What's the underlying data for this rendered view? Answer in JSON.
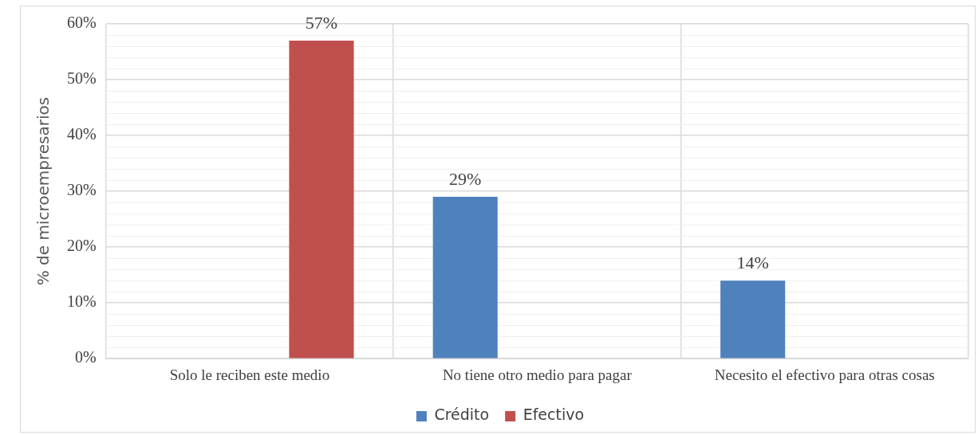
{
  "chart_data": {
    "type": "bar",
    "ylabel": "% de microempresarios",
    "categories": [
      "Solo le reciben este medio",
      "No tiene otro medio para pagar",
      "Necesito el efectivo para otras cosas"
    ],
    "series": [
      {
        "name": "Crédito",
        "color": "#4f81bd",
        "values": [
          null,
          29,
          14
        ],
        "value_labels": [
          null,
          "29%",
          "14%"
        ]
      },
      {
        "name": "Efectivo",
        "color": "#c0504d",
        "values": [
          57,
          null,
          null
        ],
        "value_labels": [
          "57%",
          null,
          null
        ]
      }
    ],
    "ylim": [
      0,
      60
    ],
    "yticks": [
      {
        "value": 0,
        "label": "0%"
      },
      {
        "value": 2,
        "label": null
      },
      {
        "value": 4,
        "label": null
      },
      {
        "value": 6,
        "label": null
      },
      {
        "value": 8,
        "label": null
      },
      {
        "value": 10,
        "label": "10%"
      },
      {
        "value": 12,
        "label": null
      },
      {
        "value": 14,
        "label": null
      },
      {
        "value": 16,
        "label": null
      },
      {
        "value": 18,
        "label": null
      },
      {
        "value": 20,
        "label": "20%"
      },
      {
        "value": 22,
        "label": null
      },
      {
        "value": 24,
        "label": null
      },
      {
        "value": 26,
        "label": null
      },
      {
        "value": 28,
        "label": null
      },
      {
        "value": 30,
        "label": "30%"
      },
      {
        "value": 32,
        "label": null
      },
      {
        "value": 34,
        "label": null
      },
      {
        "value": 36,
        "label": null
      },
      {
        "value": 38,
        "label": null
      },
      {
        "value": 40,
        "label": "40%"
      },
      {
        "value": 42,
        "label": null
      },
      {
        "value": 44,
        "label": null
      },
      {
        "value": 46,
        "label": null
      },
      {
        "value": 48,
        "label": null
      },
      {
        "value": 50,
        "label": "50%"
      },
      {
        "value": 52,
        "label": null
      },
      {
        "value": 54,
        "label": null
      },
      {
        "value": 56,
        "label": null
      },
      {
        "value": 58,
        "label": null
      },
      {
        "value": 60,
        "label": "60%"
      }
    ],
    "grid": true,
    "legend": "bottom"
  }
}
